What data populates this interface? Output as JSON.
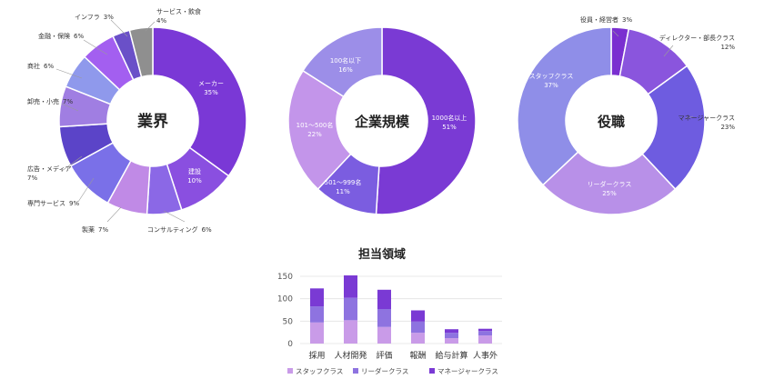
{
  "chart_data": [
    {
      "type": "pie",
      "title": "業界",
      "slices": [
        {
          "label": "メーカー",
          "value": 35,
          "pct": "35%",
          "color": "#7a38d6"
        },
        {
          "label": "建設",
          "value": 10,
          "pct": "10%",
          "color": "#8a4fe0"
        },
        {
          "label": "コンサルティング",
          "value": 6,
          "pct": "6%",
          "color": "#8b68e6"
        },
        {
          "label": "製薬",
          "value": 7,
          "pct": "7%",
          "color": "#c08ae6"
        },
        {
          "label": "専門サービス",
          "value": 9,
          "pct": "9%",
          "color": "#7a70e8"
        },
        {
          "label": "広告・メディア",
          "value": 7,
          "pct": "7%",
          "color": "#5b44c8"
        },
        {
          "label": "卸売・小売",
          "value": 7,
          "pct": "7%",
          "color": "#a07ee2"
        },
        {
          "label": "商社",
          "value": 6,
          "pct": "6%",
          "color": "#8f99ec"
        },
        {
          "label": "金融・保険",
          "value": 6,
          "pct": "6%",
          "color": "#a35ff0"
        },
        {
          "label": "インフラ",
          "value": 3,
          "pct": "3%",
          "color": "#6a50c8"
        },
        {
          "label": "サービス・飲食",
          "value": 4,
          "pct": "4%",
          "color": "#8f8f8f"
        }
      ]
    },
    {
      "type": "pie",
      "title": "企業規模",
      "slices": [
        {
          "label": "1000名以上",
          "value": 51,
          "pct": "51%",
          "color": "#7a3ad4"
        },
        {
          "label": "501～999名",
          "value": 11,
          "pct": "11%",
          "color": "#7b5de0"
        },
        {
          "label": "101～500名",
          "value": 22,
          "pct": "22%",
          "color": "#c395ea"
        },
        {
          "label": "100名以下",
          "value": 16,
          "pct": "16%",
          "color": "#9c8ee8"
        }
      ]
    },
    {
      "type": "pie",
      "title": "役職",
      "slices": [
        {
          "label": "役員・経営者",
          "value": 3,
          "pct": "3%",
          "color": "#7a2fd0"
        },
        {
          "label": "ディレクター・部長クラス",
          "value": 12,
          "pct": "12%",
          "color": "#8a55dd"
        },
        {
          "label": "マネージャークラス",
          "value": 23,
          "pct": "23%",
          "color": "#6e5ce0"
        },
        {
          "label": "リーダークラス",
          "value": 25,
          "pct": "25%",
          "color": "#b890e8"
        },
        {
          "label": "スタッフクラス",
          "value": 37,
          "pct": "37%",
          "color": "#8f8ee8"
        }
      ]
    },
    {
      "type": "bar",
      "stacked": true,
      "title": "担当領域",
      "categories": [
        "採用",
        "人材開発",
        "評価",
        "報酬",
        "給与計算",
        "人事外"
      ],
      "series": [
        {
          "name": "スタッフクラス",
          "color": "#c99be8",
          "values": [
            47,
            52,
            37,
            24,
            12,
            18
          ]
        },
        {
          "name": "リーダークラス",
          "color": "#8e73e0",
          "values": [
            36,
            50,
            40,
            25,
            12,
            10
          ]
        },
        {
          "name": "マネージャークラス",
          "color": "#7a3ad4",
          "values": [
            40,
            50,
            43,
            25,
            8,
            5
          ]
        }
      ],
      "ylim": [
        0,
        150
      ],
      "yticks": [
        0,
        50,
        100,
        150
      ],
      "grid": true,
      "legend": "bottom"
    }
  ]
}
